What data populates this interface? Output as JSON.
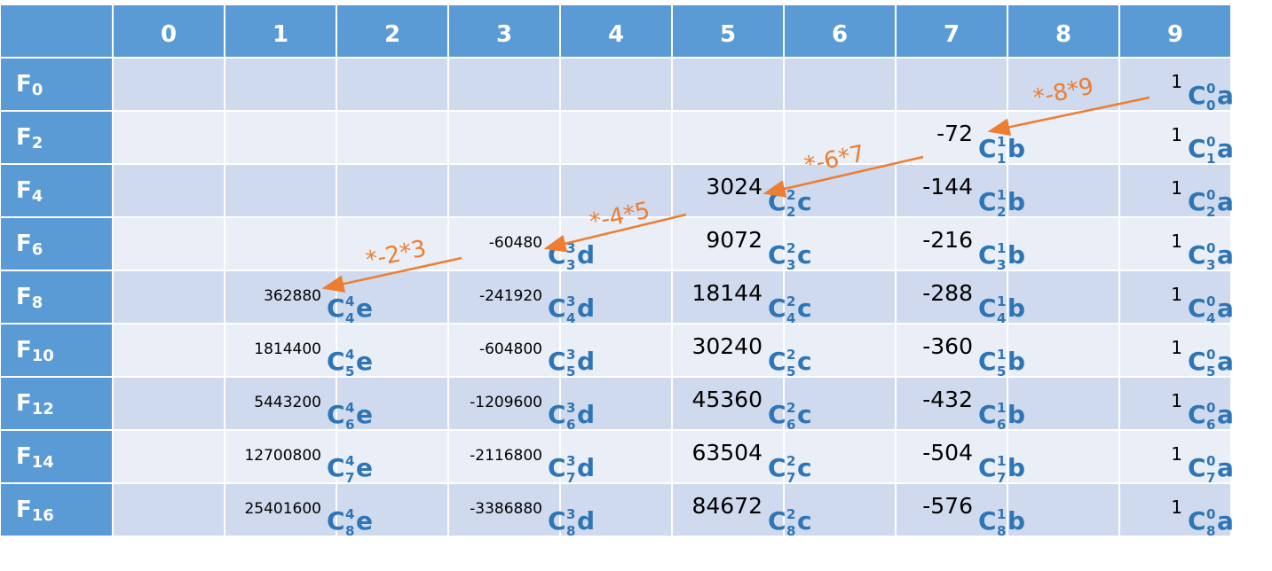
{
  "table": {
    "columns": [
      "0",
      "1",
      "2",
      "3",
      "4",
      "5",
      "6",
      "7",
      "8",
      "9"
    ],
    "c_symbol": "C",
    "rows": [
      {
        "label": "F",
        "sub": "0",
        "cells": [
          null,
          null,
          null,
          null,
          null,
          null,
          null,
          null,
          null,
          {
            "value": 1,
            "sup": "0",
            "sub": "0",
            "letter": "a"
          }
        ]
      },
      {
        "label": "F",
        "sub": "2",
        "cells": [
          null,
          null,
          null,
          null,
          null,
          null,
          null,
          {
            "value": -72,
            "sup": "1",
            "sub": "1",
            "letter": "b"
          },
          null,
          {
            "value": 1,
            "sup": "0",
            "sub": "1",
            "letter": "a"
          }
        ]
      },
      {
        "label": "F",
        "sub": "4",
        "cells": [
          null,
          null,
          null,
          null,
          null,
          {
            "value": 3024,
            "sup": "2",
            "sub": "2",
            "letter": "c"
          },
          null,
          {
            "value": -144,
            "sup": "1",
            "sub": "2",
            "letter": "b"
          },
          null,
          {
            "value": 1,
            "sup": "0",
            "sub": "2",
            "letter": "a"
          }
        ]
      },
      {
        "label": "F",
        "sub": "6",
        "cells": [
          null,
          null,
          null,
          {
            "value": -60480,
            "sup": "3",
            "sub": "3",
            "letter": "d"
          },
          null,
          {
            "value": 9072,
            "sup": "2",
            "sub": "3",
            "letter": "c"
          },
          null,
          {
            "value": -216,
            "sup": "1",
            "sub": "3",
            "letter": "b"
          },
          null,
          {
            "value": 1,
            "sup": "0",
            "sub": "3",
            "letter": "a"
          }
        ]
      },
      {
        "label": "F",
        "sub": "8",
        "cells": [
          null,
          {
            "value": 362880,
            "sup": "4",
            "sub": "4",
            "letter": "e"
          },
          null,
          {
            "value": -241920,
            "sup": "3",
            "sub": "4",
            "letter": "d"
          },
          null,
          {
            "value": 18144,
            "sup": "2",
            "sub": "4",
            "letter": "c"
          },
          null,
          {
            "value": -288,
            "sup": "1",
            "sub": "4",
            "letter": "b"
          },
          null,
          {
            "value": 1,
            "sup": "0",
            "sub": "4",
            "letter": "a"
          }
        ]
      },
      {
        "label": "F",
        "sub": "10",
        "cells": [
          null,
          {
            "value": 1814400,
            "sup": "4",
            "sub": "5",
            "letter": "e"
          },
          null,
          {
            "value": -604800,
            "sup": "3",
            "sub": "5",
            "letter": "d"
          },
          null,
          {
            "value": 30240,
            "sup": "2",
            "sub": "5",
            "letter": "c"
          },
          null,
          {
            "value": -360,
            "sup": "1",
            "sub": "5",
            "letter": "b"
          },
          null,
          {
            "value": 1,
            "sup": "0",
            "sub": "5",
            "letter": "a"
          }
        ]
      },
      {
        "label": "F",
        "sub": "12",
        "cells": [
          null,
          {
            "value": 5443200,
            "sup": "4",
            "sub": "6",
            "letter": "e"
          },
          null,
          {
            "value": -1209600,
            "sup": "3",
            "sub": "6",
            "letter": "d"
          },
          null,
          {
            "value": 45360,
            "sup": "2",
            "sub": "6",
            "letter": "c"
          },
          null,
          {
            "value": -432,
            "sup": "1",
            "sub": "6",
            "letter": "b"
          },
          null,
          {
            "value": 1,
            "sup": "0",
            "sub": "6",
            "letter": "a"
          }
        ]
      },
      {
        "label": "F",
        "sub": "14",
        "cells": [
          null,
          {
            "value": 12700800,
            "sup": "4",
            "sub": "7",
            "letter": "e"
          },
          null,
          {
            "value": -2116800,
            "sup": "3",
            "sub": "7",
            "letter": "d"
          },
          null,
          {
            "value": 63504,
            "sup": "2",
            "sub": "7",
            "letter": "c"
          },
          null,
          {
            "value": -504,
            "sup": "1",
            "sub": "7",
            "letter": "b"
          },
          null,
          {
            "value": 1,
            "sup": "0",
            "sub": "7",
            "letter": "a"
          }
        ]
      },
      {
        "label": "F",
        "sub": "16",
        "cells": [
          null,
          {
            "value": 25401600,
            "sup": "4",
            "sub": "8",
            "letter": "e"
          },
          null,
          {
            "value": -3386880,
            "sup": "3",
            "sub": "8",
            "letter": "d"
          },
          null,
          {
            "value": 84672,
            "sup": "2",
            "sub": "8",
            "letter": "c"
          },
          null,
          {
            "value": -576,
            "sup": "1",
            "sub": "8",
            "letter": "b"
          },
          null,
          {
            "value": 1,
            "sup": "0",
            "sub": "8",
            "letter": "a"
          }
        ]
      }
    ],
    "arrows": [
      {
        "label": "*-8*9"
      },
      {
        "label": "*-6*7"
      },
      {
        "label": "*-4*5"
      },
      {
        "label": "*-2*3"
      }
    ]
  }
}
